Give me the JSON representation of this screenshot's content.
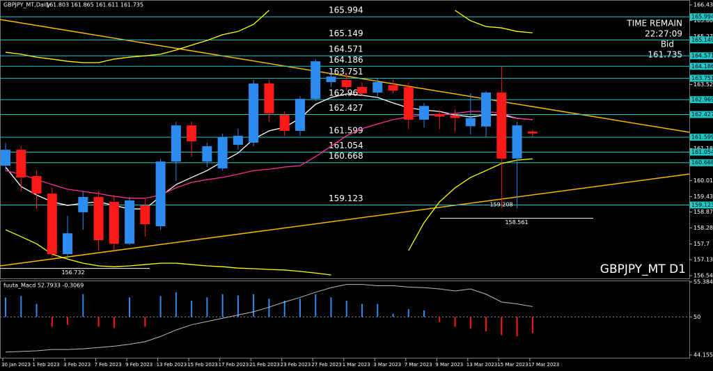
{
  "header": {
    "symbol": "GBPJPY_MT,Daily",
    "ohlc": "161.803 161.865 161.611 161.735",
    "time_remain_label": "TIME REMAIN",
    "time_remain": "22:27:09",
    "bid_label": "Bid",
    "bid": "161.735",
    "watermark": "GBPJPY_MT D1"
  },
  "chart_data": [
    {
      "type": "candlestick",
      "color_up": "#2d8cf0",
      "color_down": "#ff1a1a",
      "grid": false,
      "categories": [
        "30 Jan 2023",
        null,
        "1 Feb 2023",
        null,
        "3 Feb 2023",
        null,
        "7 Feb 2023",
        null,
        "9 Feb 2023",
        null,
        "13 Feb 2023",
        null,
        "15 Feb 2023",
        null,
        "17 Feb 2023",
        null,
        "21 Feb 2023",
        null,
        "23 Feb 2023",
        null,
        "27 Feb 2023",
        null,
        "1 Mar 2023",
        null,
        "3 Mar 2023",
        null,
        "7 Mar 2023",
        null,
        "9 Mar 2023",
        null,
        "13 Mar 2023",
        null,
        "15 Mar 2023",
        null,
        "17 Mar 2023"
      ],
      "open": [
        160.56,
        161.14,
        160.18,
        159.54,
        157.33,
        158.86,
        159.42,
        159.24,
        157.71,
        159.11,
        158.35,
        160.71,
        162.03,
        160.71,
        160.46,
        161.32,
        161.4,
        163.56,
        162.41,
        161.83,
        163.0,
        163.61,
        163.69,
        163.43,
        163.23,
        163.5,
        163.43,
        162.24,
        162.45,
        162.4,
        162.0,
        161.99,
        163.23,
        160.82,
        161.803
      ],
      "high": [
        161.4,
        161.27,
        160.38,
        159.75,
        158.73,
        159.62,
        159.62,
        159.5,
        159.42,
        159.37,
        160.81,
        162.16,
        162.16,
        161.4,
        161.73,
        161.91,
        163.69,
        163.69,
        162.54,
        163.1,
        164.45,
        164.07,
        163.94,
        163.6,
        163.75,
        163.7,
        163.6,
        162.85,
        162.6,
        162.6,
        163.2,
        163.3,
        164.2,
        162.16,
        161.865
      ],
      "low": [
        160.38,
        159.62,
        158.98,
        157.21,
        157.15,
        158.22,
        157.46,
        157.45,
        157.66,
        157.97,
        158.22,
        160.0,
        160.89,
        160.51,
        160.38,
        161.14,
        161.27,
        162.16,
        161.65,
        161.65,
        162.92,
        163.43,
        163.3,
        163.1,
        163.1,
        163.2,
        161.9,
        161.95,
        161.9,
        161.8,
        161.7,
        161.6,
        159.0,
        159.0,
        161.611
      ],
      "close": [
        161.14,
        160.13,
        159.54,
        157.33,
        158.09,
        159.42,
        157.84,
        157.71,
        159.29,
        158.42,
        160.71,
        162.03,
        161.45,
        161.27,
        161.6,
        161.65,
        163.56,
        162.47,
        161.83,
        163.0,
        164.37,
        163.81,
        163.43,
        163.2,
        163.61,
        163.3,
        162.24,
        162.74,
        162.35,
        162.3,
        162.3,
        163.23,
        160.82,
        162.03,
        161.735
      ],
      "overlays": [
        {
          "color": "#ffffff",
          "values": [
            160.51,
            159.8,
            159.49,
            159.24,
            159.11,
            159.19,
            159.24,
            159.11,
            158.98,
            158.98,
            159.44,
            159.87,
            160.13,
            160.38,
            160.71,
            161.02,
            161.53,
            161.83,
            161.96,
            162.29,
            162.8,
            163.05,
            163.18,
            163.13,
            163.05,
            162.85,
            162.67,
            162.59,
            162.54,
            162.41,
            162.34,
            162.41,
            162.41,
            162.29,
            162.24
          ]
        },
        {
          "color": "#ff2d9b",
          "values": [
            160.38,
            160.25,
            160.05,
            159.87,
            159.7,
            159.62,
            159.54,
            159.44,
            159.37,
            159.37,
            159.49,
            159.75,
            159.95,
            160.05,
            160.13,
            160.25,
            160.38,
            160.43,
            160.51,
            160.56,
            160.89,
            161.27,
            161.65,
            161.91,
            162.08,
            162.24,
            162.34,
            162.41,
            162.41,
            162.47,
            162.54,
            162.54,
            162.47,
            162.29,
            162.24
          ]
        },
        {
          "color": "#ffff00",
          "values": [
            164.7,
            164.63,
            164.52,
            164.45,
            164.37,
            164.32,
            164.32,
            164.45,
            164.52,
            164.57,
            164.63,
            164.78,
            164.96,
            165.13,
            165.34,
            165.46,
            165.72,
            166.23,
            null,
            null,
            null,
            null,
            null,
            null,
            null,
            null,
            null,
            null,
            null,
            166.23,
            165.85,
            165.64,
            165.59,
            165.46,
            165.41
          ]
        },
        {
          "color": "#ffff00",
          "values": [
            158.22,
            157.97,
            157.71,
            157.33,
            157.15,
            157.0,
            156.9,
            156.87,
            156.9,
            156.95,
            157.0,
            157.0,
            156.95,
            156.9,
            156.87,
            156.82,
            156.8,
            156.77,
            156.75,
            156.7,
            156.64,
            156.57,
            null,
            null,
            null,
            null,
            157.46,
            158.48,
            159.24,
            159.75,
            160.13,
            160.38,
            160.64,
            160.76,
            160.81
          ]
        }
      ],
      "levels": [
        165.994,
        165.149,
        164.571,
        164.186,
        163.751,
        162.969,
        162.427,
        161.599,
        161.054,
        160.668,
        159.123
      ],
      "price_marks": [
        158.561,
        156.732,
        159.208
      ],
      "ylim": [
        156.545,
        166.43
      ],
      "yticks": [
        166.43,
        165.86,
        165.275,
        163.52,
        161.185,
        160.015,
        159.43,
        158.87,
        158.285,
        157.7,
        157.13,
        156.545
      ]
    },
    {
      "type": "histogram",
      "title": "fuuta_Macd 52.7933 -0.3069",
      "color_up": "#2d8cf0",
      "color_down": "#ff1a1a",
      "line_color": "#bbbbbb",
      "baseline": 50,
      "values": [
        53.0,
        53.2,
        52.0,
        48.5,
        48.8,
        53.5,
        48.5,
        48.3,
        53.0,
        48.5,
        53.2,
        53.8,
        52.5,
        53.0,
        53.5,
        53.3,
        53.5,
        52.8,
        52.5,
        52.8,
        53.5,
        53.0,
        52.5,
        52.0,
        52.0,
        50.5,
        51.2,
        51.0,
        49.2,
        48.5,
        48.2,
        47.8,
        47.2,
        47.0,
        47.5
      ],
      "line": [
        44.6,
        44.7,
        44.8,
        45.0,
        45.0,
        45.1,
        45.3,
        45.5,
        45.8,
        46.2,
        47.0,
        48.0,
        48.8,
        49.3,
        49.8,
        50.3,
        50.8,
        51.5,
        52.3,
        53.0,
        53.8,
        54.5,
        55.0,
        55.0,
        54.8,
        54.8,
        54.6,
        54.5,
        54.3,
        54.0,
        54.3,
        53.5,
        52.3,
        52.0,
        51.6
      ],
      "ylim": [
        44.1557,
        55.3841
      ],
      "yticks": [
        55.3841,
        50,
        44.1557
      ]
    }
  ]
}
